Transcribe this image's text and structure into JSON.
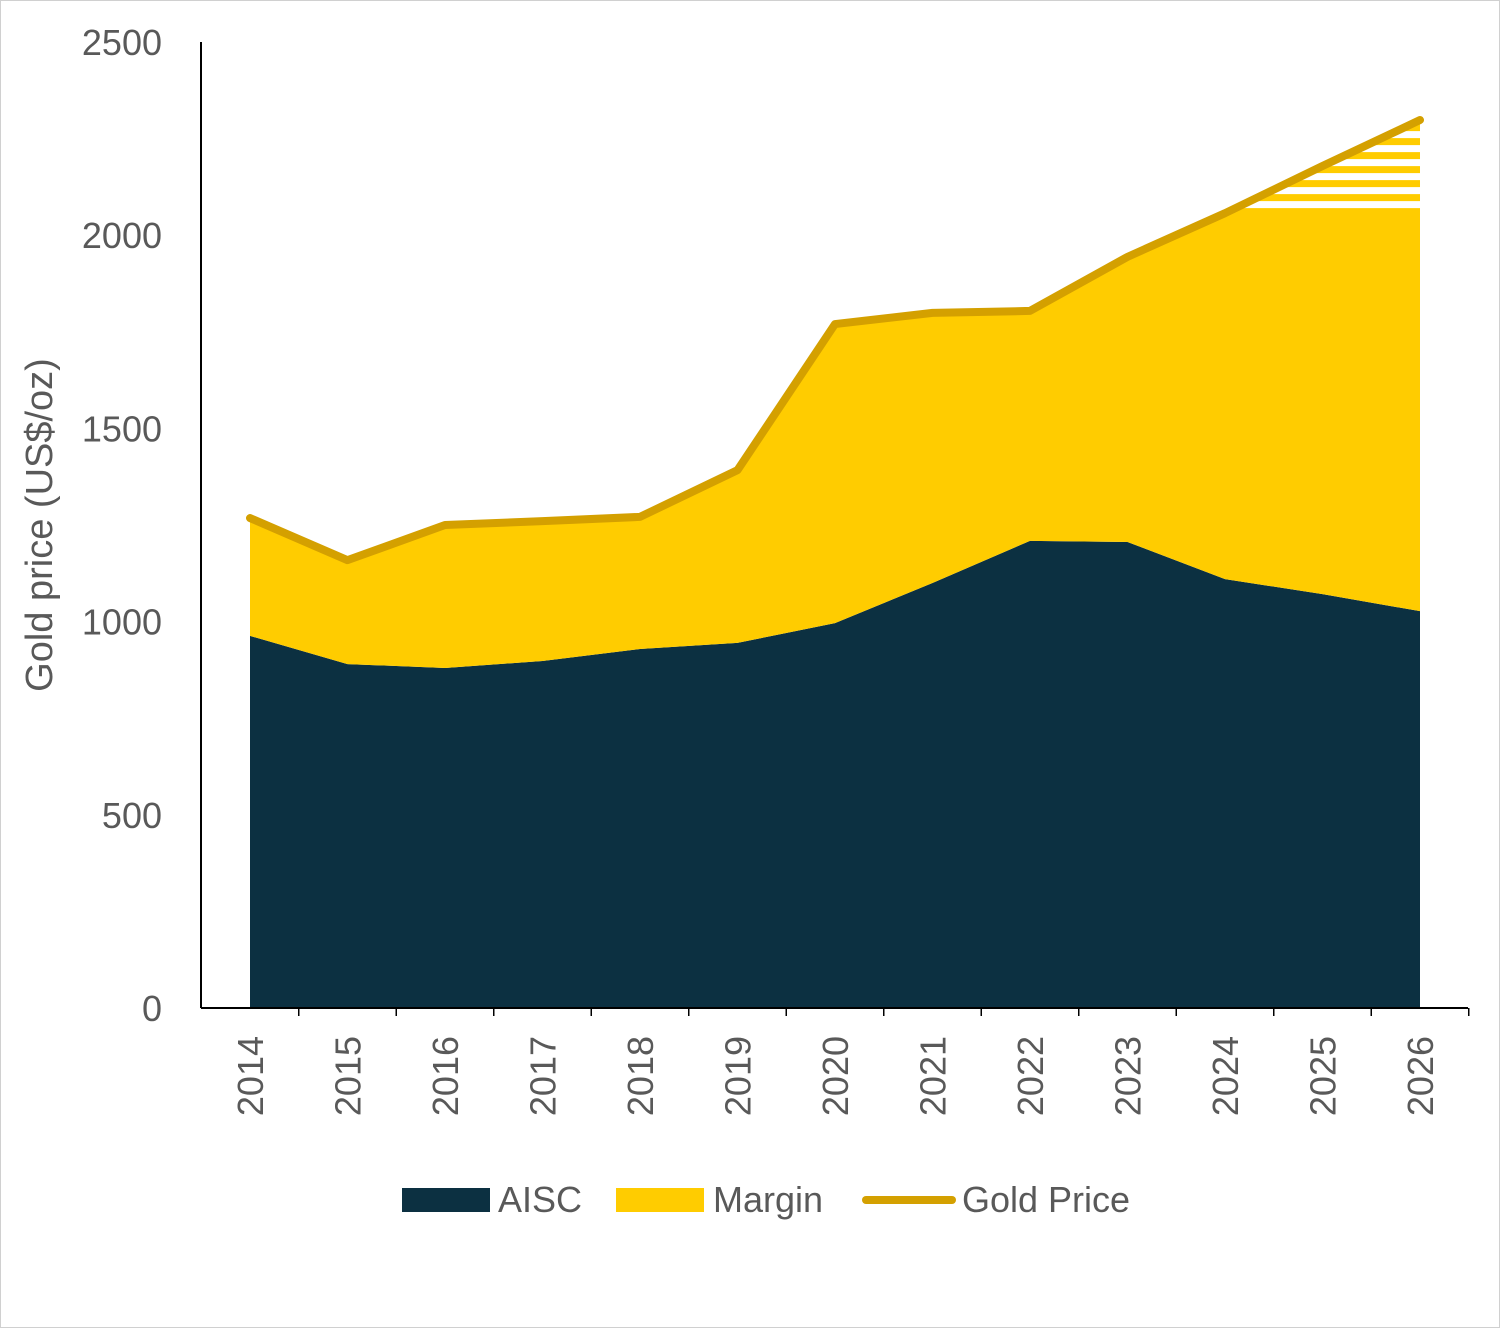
{
  "chart_data": {
    "type": "area",
    "title": "",
    "xlabel": "",
    "ylabel": "Gold price (US$/oz)",
    "ylim": [
      0,
      2500
    ],
    "yticks": [
      0,
      500,
      1000,
      1500,
      2000,
      2500
    ],
    "grid": false,
    "legend_position": "bottom",
    "categories": [
      "2014",
      "2015",
      "2016",
      "2017",
      "2018",
      "2019",
      "2020",
      "2021",
      "2022",
      "2023",
      "2024",
      "2025",
      "2026"
    ],
    "series": [
      {
        "name": "AISC",
        "kind": "area-stacked",
        "color": "#0c3041",
        "values": [
          963,
          890,
          880,
          898,
          929,
          945,
          996,
          1100,
          1209,
          1206,
          1110,
          1071,
          1027
        ]
      },
      {
        "name": "Margin",
        "kind": "area-stacked",
        "color": "#ffcc00",
        "values": [
          305,
          269,
          370,
          362,
          342,
          447,
          774,
          699,
          595,
          738,
          947,
          1108,
          1271
        ],
        "forecast_hatch_above": 2052
      },
      {
        "name": "Gold Price",
        "kind": "line",
        "color": "#d4a000",
        "values": [
          1268,
          1159,
          1250,
          1260,
          1271,
          1392,
          1770,
          1799,
          1804,
          1944,
          2057,
          2179,
          2298
        ]
      }
    ]
  }
}
